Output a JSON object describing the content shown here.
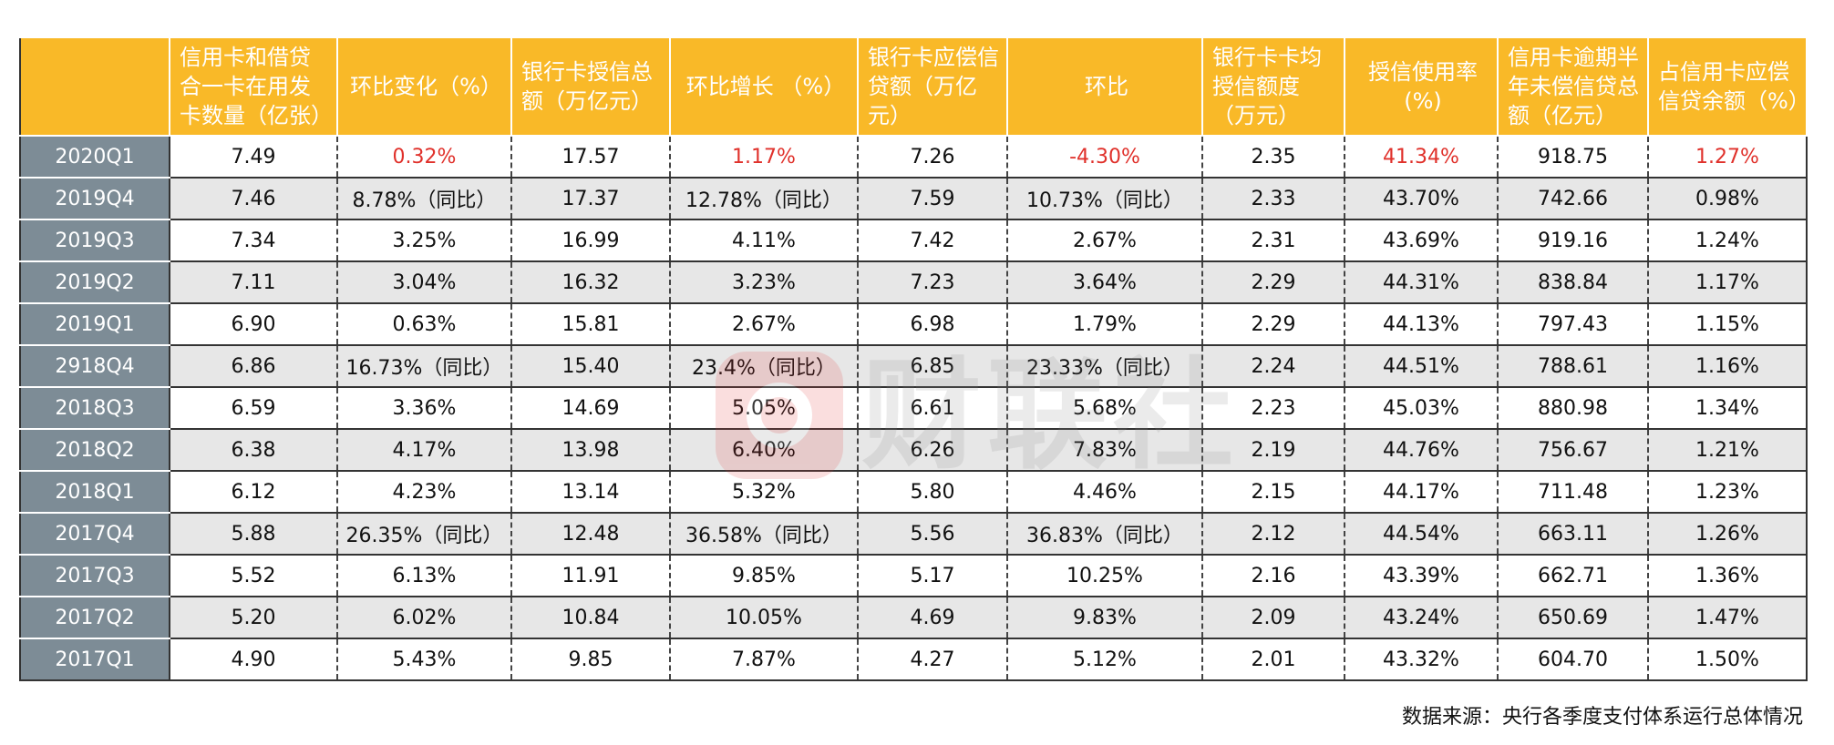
{
  "chart_data": {
    "type": "table",
    "columns": [
      "",
      "信用卡和借贷合一卡在用发卡数量（亿张）",
      "环比变化（%）",
      "银行卡授信总额（万亿元）",
      "环比增长 （%）",
      "银行卡应偿信贷额（万亿元）",
      "环比",
      "银行卡卡均授信额度（万元）",
      "授信使用率(%)",
      "信用卡逾期半年未偿信贷总额（亿元）",
      "占信用卡应偿信贷余额（%）"
    ],
    "rows": [
      [
        "2020Q1",
        "7.49",
        "0.32%",
        "17.57",
        "1.17%",
        "7.26",
        "-4.30%",
        "2.35",
        "41.34%",
        "918.75",
        "1.27%"
      ],
      [
        "2019Q4",
        "7.46",
        "8.78%（同比）",
        "17.37",
        "12.78%（同比）",
        "7.59",
        "10.73%（同比）",
        "2.33",
        "43.70%",
        "742.66",
        "0.98%"
      ],
      [
        "2019Q3",
        "7.34",
        "3.25%",
        "16.99",
        "4.11%",
        "7.42",
        "2.67%",
        "2.31",
        "43.69%",
        "919.16",
        "1.24%"
      ],
      [
        "2019Q2",
        "7.11",
        "3.04%",
        "16.32",
        "3.23%",
        "7.23",
        "3.64%",
        "2.29",
        "44.31%",
        "838.84",
        "1.17%"
      ],
      [
        "2019Q1",
        "6.90",
        "0.63%",
        "15.81",
        "2.67%",
        "6.98",
        "1.79%",
        "2.29",
        "44.13%",
        "797.43",
        "1.15%"
      ],
      [
        "2918Q4",
        "6.86",
        "16.73%（同比）",
        "15.40",
        "23.4%（同比）",
        "6.85",
        "23.33%（同比）",
        "2.24",
        "44.51%",
        "788.61",
        "1.16%"
      ],
      [
        "2018Q3",
        "6.59",
        "3.36%",
        "14.69",
        "5.05%",
        "6.61",
        "5.68%",
        "2.23",
        "45.03%",
        "880.98",
        "1.34%"
      ],
      [
        "2018Q2",
        "6.38",
        "4.17%",
        "13.98",
        "6.40%",
        "6.26",
        "7.83%",
        "2.19",
        "44.76%",
        "756.67",
        "1.21%"
      ],
      [
        "2018Q1",
        "6.12",
        "4.23%",
        "13.14",
        "5.32%",
        "5.80",
        "4.46%",
        "2.15",
        "44.17%",
        "711.48",
        "1.23%"
      ],
      [
        "2017Q4",
        "5.88",
        "26.35%（同比）",
        "12.48",
        "36.58%（同比）",
        "5.56",
        "36.83%（同比）",
        "2.12",
        "44.54%",
        "663.11",
        "1.26%"
      ],
      [
        "2017Q3",
        "5.52",
        "6.13%",
        "11.91",
        "9.85%",
        "5.17",
        "10.25%",
        "2.16",
        "43.39%",
        "662.71",
        "1.36%"
      ],
      [
        "2017Q2",
        "5.20",
        "6.02%",
        "10.84",
        "10.05%",
        "4.69",
        "9.83%",
        "2.09",
        "43.24%",
        "650.69",
        "1.47%"
      ],
      [
        "2017Q1",
        "4.90",
        "5.43%",
        "9.85",
        "7.87%",
        "4.27",
        "5.12%",
        "2.01",
        "43.32%",
        "604.70",
        "1.50%"
      ]
    ],
    "highlight_row": "2020Q1",
    "highlight_color": "#e0312b",
    "highlight_columns": [
      2,
      4,
      6,
      8,
      10
    ],
    "header_color": "#f9b928",
    "row_header_color": "#7d8c96",
    "shaded_row_color": "#e7e7e7"
  },
  "source_note": "数据来源：央行各季度支付体系运行总体情况",
  "watermark": {
    "text": "财联社",
    "icon": "brand-logo-icon"
  }
}
